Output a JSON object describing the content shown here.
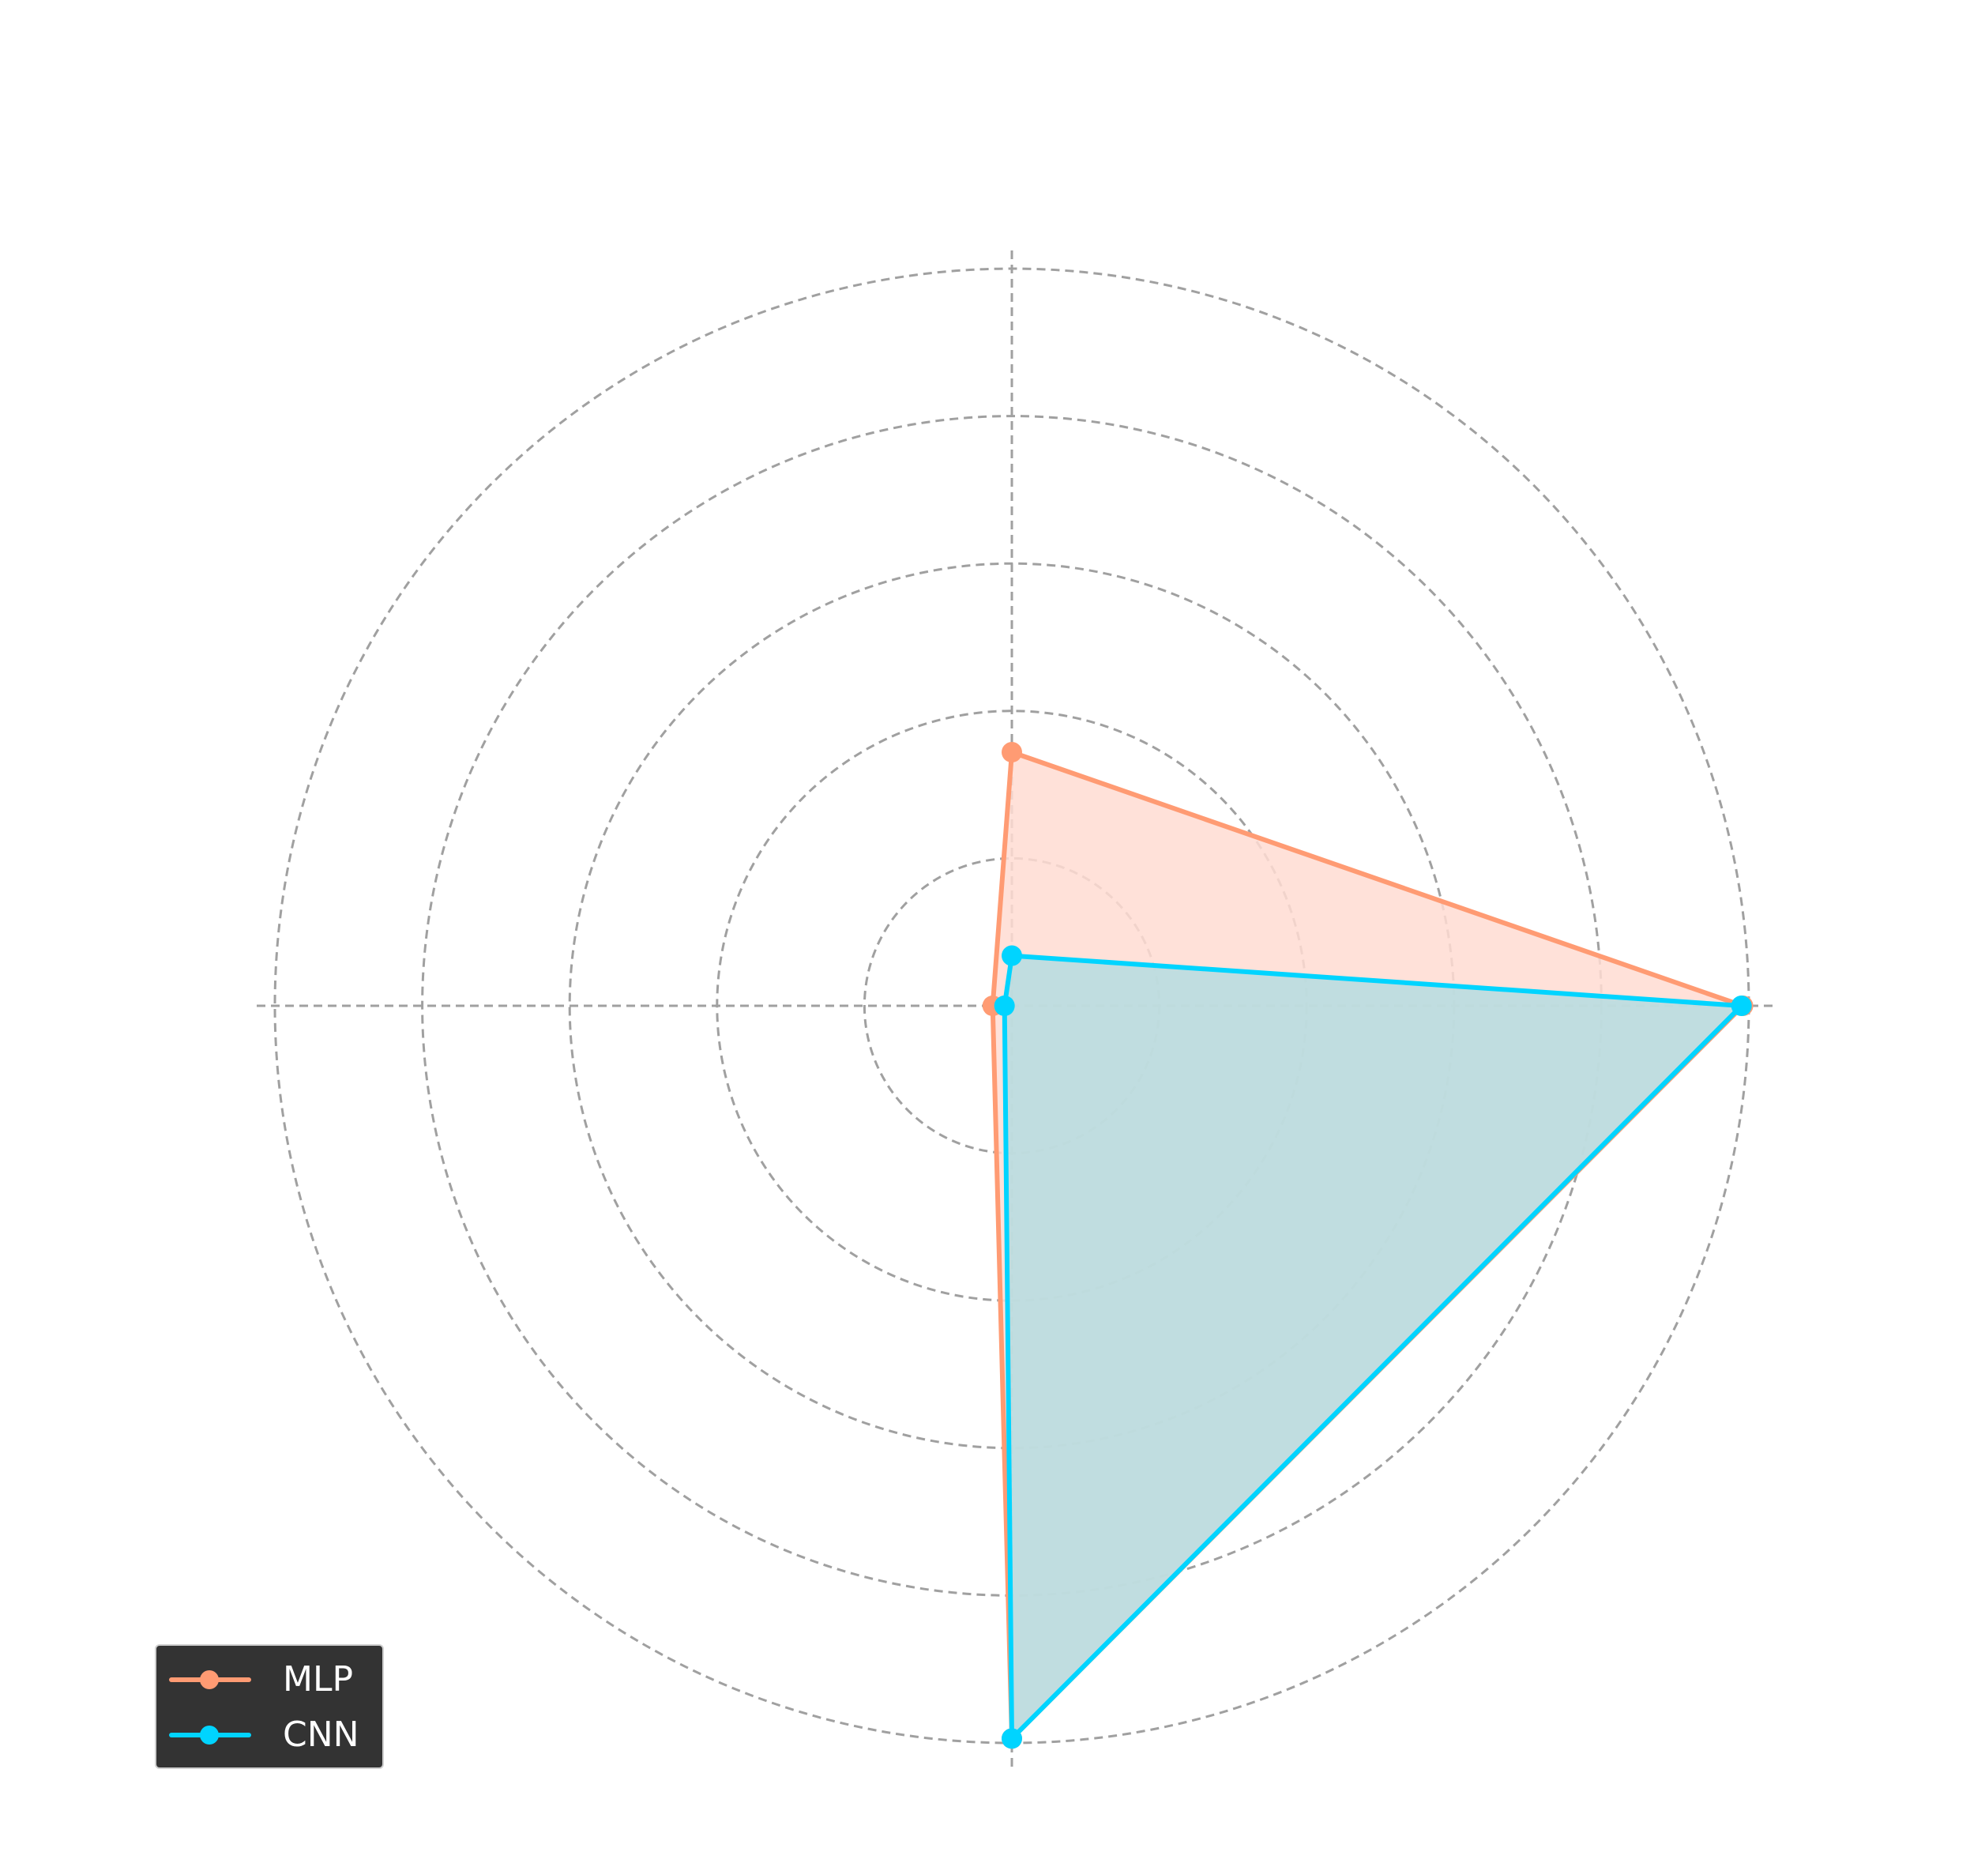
{
  "chart_data": {
    "type": "radar",
    "axes_count": 4,
    "rlim": [
      0,
      5
    ],
    "ring_values": [
      1,
      2,
      3,
      4,
      5
    ],
    "grid": true,
    "legend_position": "lower-left",
    "series": [
      {
        "name": "MLP",
        "color": "#FF9B73",
        "fill_color": "#FFDCD2",
        "values": [
          1.72,
          0.13,
          4.97,
          4.96
        ]
      },
      {
        "name": "CNN",
        "color": "#00D4FF",
        "fill_color": "#B5DCE0",
        "values": [
          0.34,
          0.05,
          4.97,
          4.95
        ]
      }
    ]
  }
}
